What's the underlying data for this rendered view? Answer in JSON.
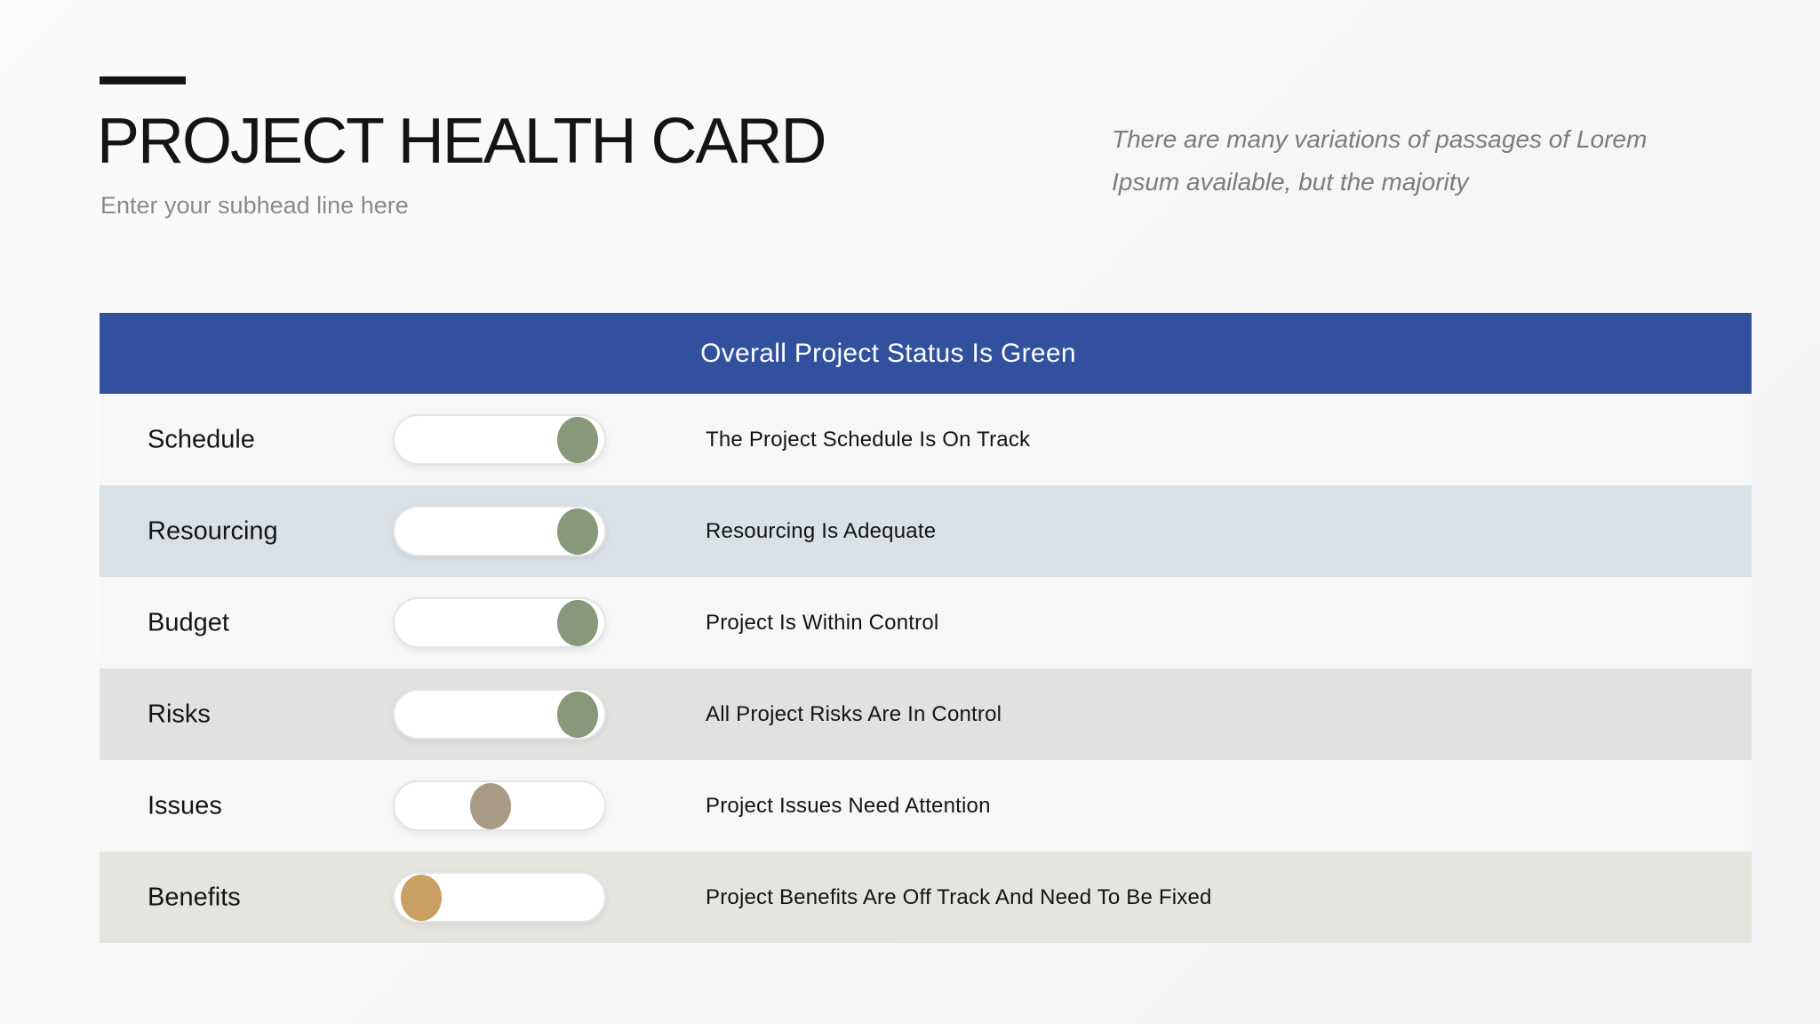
{
  "page": {
    "title": "PROJECT HEALTH CARD",
    "subtitle": "Enter your subhead line here",
    "note": {
      "line1": "There are many variations of passages of Lorem",
      "line2": "Ipsum available, but the majority"
    }
  },
  "banner": {
    "text": "Overall Project Status Is Green",
    "background": "#31519f",
    "text_color": "#ffffff"
  },
  "colors": {
    "status_green": "#87987b",
    "status_warning": "#a89a85",
    "status_offtrack": "#c9a061",
    "row_light": "#f7f7f8",
    "row_blue": "#d9e1e6",
    "row_gray": "#e1e1e0",
    "row_warmgray": "#e6e4df",
    "accent_blue": "#31519f"
  },
  "rows": [
    {
      "label": "Schedule",
      "status": "The Project Schedule Is On Track",
      "toggle_position": "right",
      "knob_color": "#87987b",
      "row_bg": "row_light"
    },
    {
      "label": "Resourcing",
      "status": "Resourcing Is Adequate",
      "toggle_position": "right",
      "knob_color": "#87987b",
      "row_bg": "row_blue"
    },
    {
      "label": "Budget",
      "status": "Project Is Within Control",
      "toggle_position": "right",
      "knob_color": "#87987b",
      "row_bg": "row_light"
    },
    {
      "label": "Risks",
      "status": "All Project Risks Are In Control",
      "toggle_position": "right",
      "knob_color": "#87987b",
      "row_bg": "row_gray"
    },
    {
      "label": "Issues",
      "status": "Project Issues Need Attention",
      "toggle_position": "middle",
      "knob_color": "#a89a85",
      "row_bg": "row_light"
    },
    {
      "label": "Benefits",
      "status": "Project Benefits Are Off Track And Need To Be Fixed",
      "toggle_position": "left",
      "knob_color": "#c9a061",
      "row_bg": "row_warmgray"
    }
  ]
}
